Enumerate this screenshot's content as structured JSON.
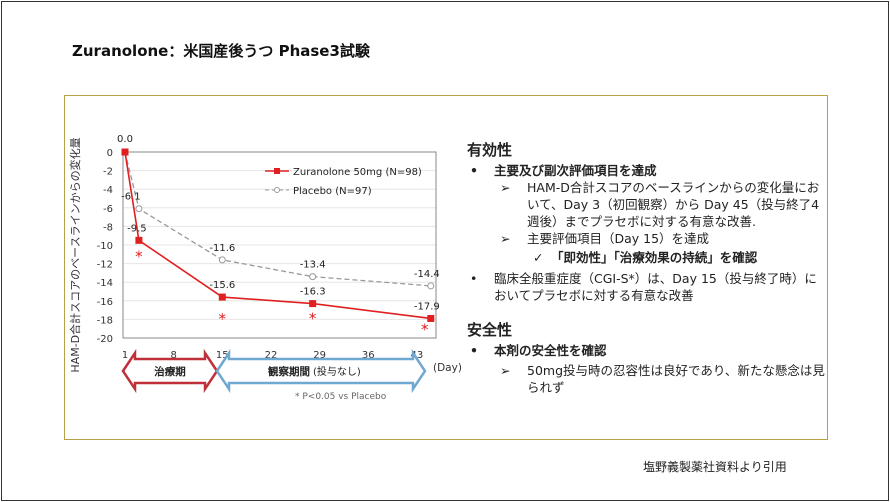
{
  "title": "Zuranolone：米国産後うつ Phase3試験",
  "source": "塩野義製薬社資料より引用",
  "chart_data": {
    "type": "line",
    "ylabel": "HAM-D合計スコアのベースラインからの変化量",
    "xlabel": "(Day)",
    "ylim": [
      -20,
      0
    ],
    "yticks": [
      0,
      -2,
      -4,
      -6,
      -8,
      -10,
      -12,
      -14,
      -16,
      -18,
      -20
    ],
    "xlim": [
      1,
      45
    ],
    "xticks": [
      1,
      8,
      15,
      22,
      29,
      36,
      43
    ],
    "series": [
      {
        "name": "Zuranolone 50mg (N=98)",
        "color": "#e02020",
        "x": [
          1,
          3,
          15,
          28,
          45
        ],
        "y": [
          0.0,
          -9.5,
          -15.6,
          -16.3,
          -17.9
        ],
        "labels": [
          "0.0",
          "-9.5",
          "-15.6",
          "-16.3",
          "-17.9"
        ],
        "significant": [
          false,
          true,
          true,
          true,
          true
        ]
      },
      {
        "name": "Placebo (N=97)",
        "color": "#999999",
        "x": [
          1,
          3,
          15,
          28,
          45
        ],
        "y": [
          0.0,
          -6.1,
          -11.6,
          -13.4,
          -14.4
        ],
        "labels": [
          "",
          "-6.1",
          "-11.6",
          "-13.4",
          "-14.4"
        ]
      }
    ],
    "periods": [
      {
        "label": "治療期",
        "color": "#c0303a"
      },
      {
        "label": "観察期間",
        "sub": "(投与なし)",
        "color": "#6fa8d0"
      }
    ],
    "footnote": "* P<0.05 vs Placebo",
    "sig_marker": "*"
  },
  "efficacy": {
    "heading": "有効性",
    "b1": "主要及び副次評価項目を達成",
    "b1a": "HAM-D合計スコアのベースラインからの変化量において、Day 3（初回観察）から Day 45（投与終了4週後）までプラセボに対する有意な改善.",
    "b1b": "主要評価項目（Day 15）を達成",
    "b1c": "「即効性」「治療効果の持続」を確認",
    "b2": "臨床全般重症度（CGI-S*）は、Day 15（投与終了時）においてプラセボに対する有意な改善"
  },
  "safety": {
    "heading": "安全性",
    "b1": "本剤の安全性を確認",
    "b1a": "50mg投与時の忍容性は良好であり、新たな懸念は見られず"
  },
  "markers": {
    "arrow": "➢",
    "check": "✓"
  }
}
